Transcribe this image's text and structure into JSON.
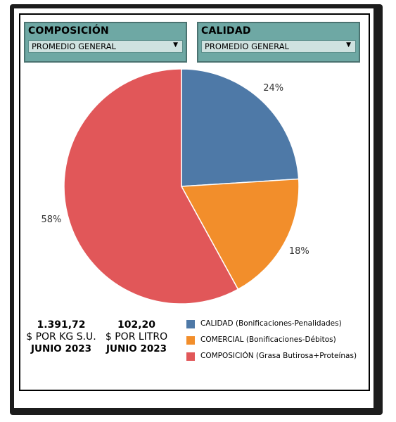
{
  "filters": [
    {
      "title": "COMPOSICIÓN",
      "value": "PROMEDIO GENERAL",
      "arrow": "▼"
    },
    {
      "title": "CALIDAD",
      "value": "PROMEDIO GENERAL",
      "arrow": "▼"
    }
  ],
  "kpis": [
    {
      "value": "1.391,72",
      "unit": "$ POR KG S.U.",
      "period": "JUNIO 2023"
    },
    {
      "value": "102,20",
      "unit": "$ POR LITRO",
      "period": "JUNIO 2023"
    }
  ],
  "chart_data": {
    "type": "pie",
    "slices": [
      {
        "name": "CALIDAD (Bonificaciones-Penalidades)",
        "value": 24,
        "label": "24%",
        "color": "#4e79a7"
      },
      {
        "name": "COMERCIAL (Bonificaciones-Débitos)",
        "value": 18,
        "label": "18%",
        "color": "#f28e2b"
      },
      {
        "name": "COMPOSICIÓN (Grasa Butirosa+Proteínas)",
        "value": 58,
        "label": "58%",
        "color": "#e15759"
      }
    ],
    "legend_position": "bottom-right"
  }
}
